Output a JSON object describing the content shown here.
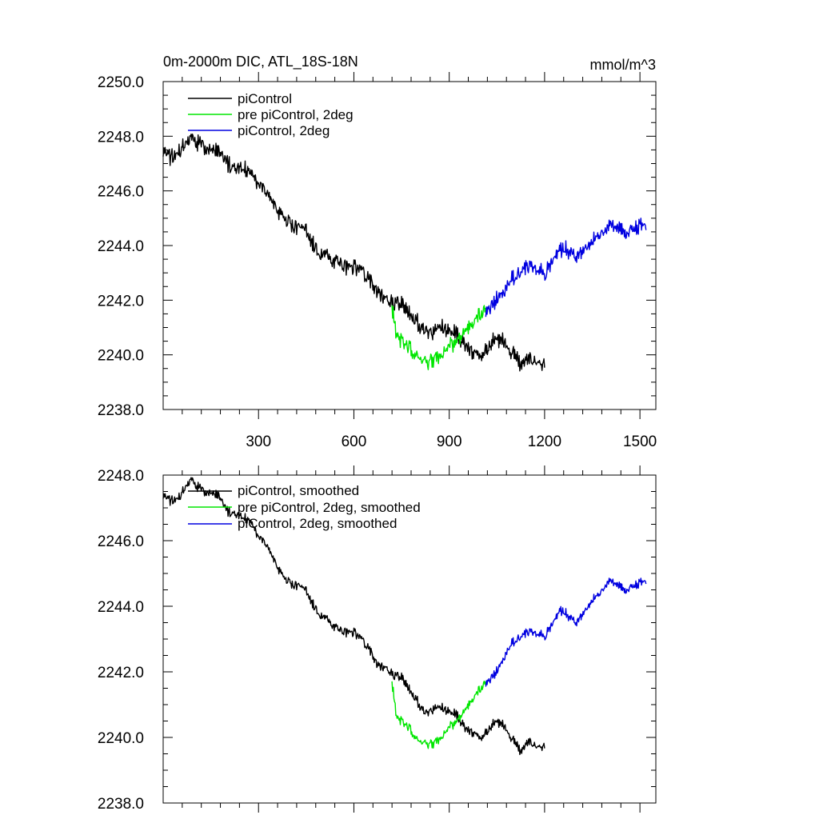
{
  "colors": {
    "piControl": "#000000",
    "pre": "#00e600",
    "twodeg": "#0000e0"
  },
  "chart_data": [
    {
      "type": "line",
      "title": "0m-2000m DIC, ATL_18S-18N",
      "units": "mmol/m^3",
      "xlim": [
        0,
        1550
      ],
      "ylim": [
        2238,
        2250
      ],
      "xticks": [
        300,
        600,
        900,
        1200,
        1500
      ],
      "xtick_labels": [
        "300",
        "600",
        "900",
        "1200",
        "1500"
      ],
      "yticks": [
        2238,
        2240,
        2242,
        2244,
        2246,
        2248,
        2250
      ],
      "ytick_labels": [
        "2238.0",
        "2240.0",
        "2242.0",
        "2244.0",
        "2246.0",
        "2248.0",
        "2250.0"
      ],
      "legend_position": "top-left",
      "series": [
        {
          "name": "piControl",
          "color_key": "piControl",
          "x": [
            0,
            25,
            50,
            75,
            90,
            100,
            125,
            150,
            175,
            200,
            225,
            250,
            275,
            300,
            325,
            350,
            375,
            400,
            425,
            450,
            475,
            500,
            525,
            550,
            575,
            600,
            625,
            650,
            675,
            700,
            725,
            750,
            775,
            800,
            825,
            850,
            875,
            900,
            925,
            950,
            975,
            1000,
            1025,
            1050,
            1075,
            1100,
            1125,
            1150,
            1175,
            1200
          ],
          "y": [
            2247.5,
            2247.2,
            2247.4,
            2247.8,
            2248.0,
            2247.8,
            2247.6,
            2247.6,
            2247.5,
            2247.0,
            2246.8,
            2246.8,
            2246.7,
            2246.2,
            2246.0,
            2245.5,
            2245.0,
            2244.8,
            2244.6,
            2244.6,
            2244.0,
            2243.7,
            2243.5,
            2243.4,
            2243.2,
            2243.2,
            2243.1,
            2242.8,
            2242.3,
            2242.0,
            2241.9,
            2241.8,
            2241.6,
            2241.2,
            2240.8,
            2240.9,
            2241.0,
            2240.9,
            2240.8,
            2240.4,
            2240.0,
            2240.0,
            2240.4,
            2240.6,
            2240.4,
            2240.0,
            2239.7,
            2239.9,
            2239.7,
            2239.6
          ]
        },
        {
          "name": "pre piControl, 2deg",
          "color_key": "pre",
          "x": [
            720,
            735,
            750,
            775,
            800,
            825,
            850,
            875,
            900,
            925,
            950,
            975,
            1000,
            1015
          ],
          "y": [
            2241.8,
            2240.7,
            2240.5,
            2240.3,
            2239.9,
            2239.7,
            2239.8,
            2240.0,
            2240.3,
            2240.5,
            2240.8,
            2241.2,
            2241.5,
            2241.7
          ]
        },
        {
          "name": "piControl, 2deg",
          "color_key": "twodeg",
          "x": [
            1015,
            1050,
            1075,
            1100,
            1125,
            1150,
            1175,
            1200,
            1225,
            1250,
            1275,
            1300,
            1325,
            1350,
            1375,
            1400,
            1425,
            1450,
            1475,
            1500,
            1520
          ],
          "y": [
            2241.5,
            2242.0,
            2242.4,
            2242.8,
            2243.1,
            2243.2,
            2243.2,
            2243.0,
            2243.5,
            2243.9,
            2243.8,
            2243.6,
            2243.8,
            2244.2,
            2244.4,
            2244.8,
            2244.7,
            2244.5,
            2244.6,
            2244.7,
            2244.6
          ]
        }
      ]
    },
    {
      "type": "line",
      "title": "",
      "xlim": [
        0,
        1550
      ],
      "ylim": [
        2238,
        2248
      ],
      "xticks": [
        300,
        600,
        900,
        1200,
        1500
      ],
      "yticks": [
        2238,
        2240,
        2242,
        2244,
        2246,
        2248
      ],
      "ytick_labels": [
        "2238.0",
        "2240.0",
        "2242.0",
        "2244.0",
        "2246.0",
        "2248.0"
      ],
      "legend_position": "top-left",
      "series": [
        {
          "name": "piControl, smoothed",
          "color_key": "piControl",
          "x": [
            0,
            25,
            50,
            75,
            90,
            100,
            125,
            150,
            175,
            200,
            225,
            250,
            275,
            300,
            325,
            350,
            375,
            400,
            425,
            450,
            475,
            500,
            525,
            550,
            575,
            600,
            625,
            650,
            675,
            700,
            725,
            750,
            775,
            800,
            825,
            850,
            875,
            900,
            925,
            950,
            975,
            1000,
            1025,
            1050,
            1075,
            1100,
            1125,
            1150,
            1175,
            1200
          ],
          "y": [
            2247.4,
            2247.2,
            2247.3,
            2247.7,
            2247.9,
            2247.7,
            2247.5,
            2247.5,
            2247.4,
            2246.9,
            2246.8,
            2246.7,
            2246.6,
            2246.1,
            2245.9,
            2245.4,
            2244.9,
            2244.7,
            2244.6,
            2244.5,
            2244.0,
            2243.7,
            2243.5,
            2243.3,
            2243.2,
            2243.2,
            2243.0,
            2242.7,
            2242.2,
            2242.1,
            2241.9,
            2241.8,
            2241.5,
            2241.1,
            2240.7,
            2240.9,
            2240.9,
            2240.8,
            2240.7,
            2240.3,
            2240.1,
            2240.0,
            2240.3,
            2240.5,
            2240.3,
            2239.9,
            2239.6,
            2239.9,
            2239.7,
            2239.7
          ]
        },
        {
          "name": "pre piControl, 2deg, smoothed",
          "color_key": "pre",
          "x": [
            720,
            735,
            750,
            775,
            800,
            825,
            850,
            875,
            900,
            925,
            950,
            975,
            1000,
            1015
          ],
          "y": [
            2241.7,
            2240.6,
            2240.5,
            2240.3,
            2239.9,
            2239.8,
            2239.8,
            2240.0,
            2240.3,
            2240.5,
            2240.8,
            2241.2,
            2241.5,
            2241.7
          ]
        },
        {
          "name": "piControl, 2deg, smoothed",
          "color_key": "twodeg",
          "x": [
            1015,
            1050,
            1075,
            1100,
            1125,
            1150,
            1175,
            1200,
            1225,
            1250,
            1275,
            1300,
            1325,
            1350,
            1375,
            1400,
            1425,
            1450,
            1475,
            1500,
            1520
          ],
          "y": [
            2241.6,
            2242.0,
            2242.5,
            2242.9,
            2243.1,
            2243.2,
            2243.2,
            2243.1,
            2243.5,
            2243.9,
            2243.7,
            2243.5,
            2243.8,
            2244.2,
            2244.4,
            2244.8,
            2244.7,
            2244.5,
            2244.6,
            2244.7,
            2244.7
          ]
        }
      ]
    }
  ]
}
